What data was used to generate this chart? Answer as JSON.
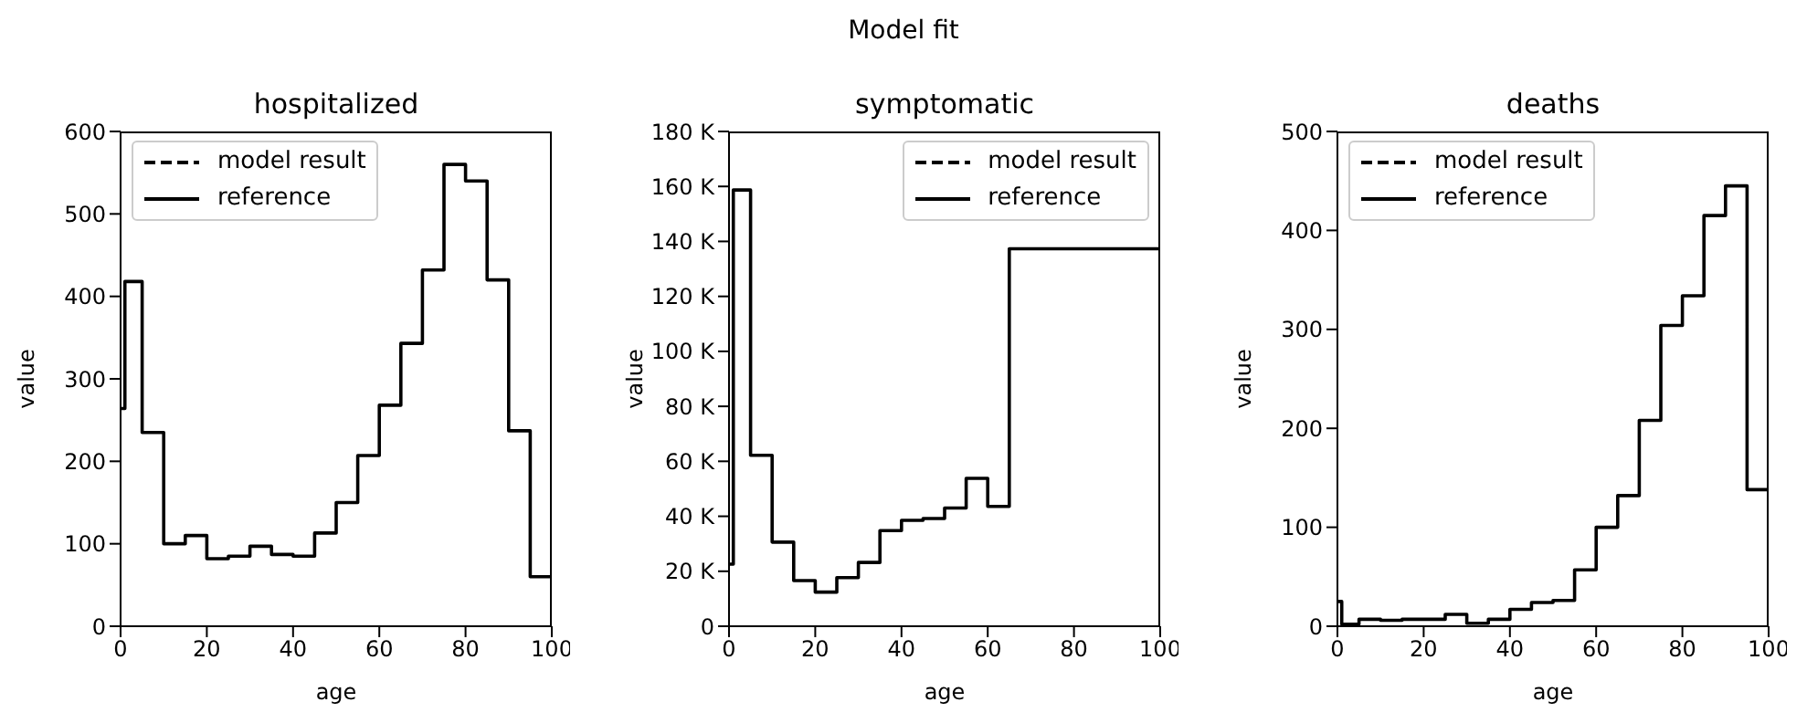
{
  "chart_data": [
    {
      "type": "step",
      "title": "hospitalized",
      "annotations": [
        "Model fit"
      ],
      "xlabel": "age",
      "ylabel": "value",
      "x": [
        0,
        1,
        5,
        10,
        15,
        20,
        25,
        30,
        35,
        40,
        45,
        50,
        55,
        60,
        65,
        70,
        75,
        80,
        85,
        90,
        95,
        100
      ],
      "series": [
        {
          "name": "model result",
          "color": "#000000",
          "line_style": "dashed",
          "values": [
            null,
            null,
            null,
            null,
            null,
            null,
            null,
            null,
            null,
            null,
            null,
            null,
            null,
            null,
            null,
            null,
            null,
            null,
            null,
            null,
            null,
            null
          ]
        },
        {
          "name": "reference",
          "color": "#000000",
          "line_style": "solid",
          "values": [
            264,
            418,
            235,
            100,
            110,
            82,
            85,
            97,
            87,
            85,
            113,
            150,
            207,
            268,
            343,
            432,
            560,
            540,
            420,
            237,
            60,
            60
          ]
        }
      ],
      "xlim": [
        0,
        100
      ],
      "xticks": [
        0,
        20,
        40,
        60,
        80,
        100
      ],
      "ylim": [
        0,
        600
      ],
      "yticks": [
        0,
        100,
        200,
        300,
        400,
        500,
        600
      ],
      "grid": false,
      "legend": "top left"
    },
    {
      "type": "step",
      "title": "symptomatic",
      "xlabel": "age",
      "ylabel": "value",
      "x": [
        0,
        1,
        5,
        10,
        15,
        20,
        25,
        30,
        35,
        40,
        45,
        50,
        55,
        60,
        65,
        100
      ],
      "series": [
        {
          "name": "model result",
          "color": "#000000",
          "line_style": "dashed",
          "values": [
            null,
            null,
            null,
            null,
            null,
            null,
            null,
            null,
            null,
            null,
            null,
            null,
            null,
            null,
            null,
            null
          ]
        },
        {
          "name": "reference",
          "color": "#000000",
          "line_style": "solid",
          "values": [
            22600,
            158700,
            62200,
            30600,
            16600,
            12400,
            17700,
            23200,
            34800,
            38500,
            39200,
            43000,
            53800,
            43600,
            137300,
            137300
          ]
        }
      ],
      "xlim": [
        0,
        100
      ],
      "xticks": [
        0,
        20,
        40,
        60,
        80,
        100
      ],
      "ylim": [
        0,
        180000
      ],
      "yticks": [
        0,
        {
          "value": 20000,
          "label": "20 K"
        },
        {
          "value": 40000,
          "label": "40 K"
        },
        {
          "value": 60000,
          "label": "60 K"
        },
        {
          "value": 80000,
          "label": "80 K"
        },
        {
          "value": 100000,
          "label": "100 K"
        },
        {
          "value": 120000,
          "label": "120 K"
        },
        {
          "value": 140000,
          "label": "140 K"
        },
        {
          "value": 160000,
          "label": "160 K"
        },
        {
          "value": 180000,
          "label": "180 K"
        }
      ],
      "grid": false,
      "legend": "top right"
    },
    {
      "type": "step",
      "title": "deaths",
      "xlabel": "age",
      "ylabel": "value",
      "x": [
        0,
        1,
        5,
        10,
        15,
        20,
        25,
        30,
        35,
        40,
        45,
        50,
        55,
        60,
        65,
        70,
        75,
        80,
        85,
        90,
        95,
        100
      ],
      "series": [
        {
          "name": "model result",
          "color": "#000000",
          "line_style": "dashed",
          "values": [
            null,
            null,
            null,
            null,
            null,
            null,
            null,
            null,
            null,
            null,
            null,
            null,
            null,
            null,
            null,
            null,
            null,
            null,
            null,
            null,
            null,
            null
          ]
        },
        {
          "name": "reference",
          "color": "#000000",
          "line_style": "solid",
          "values": [
            25,
            2,
            7,
            6,
            7,
            7,
            12,
            3,
            7,
            17,
            24,
            26,
            57,
            100,
            132,
            208,
            304,
            334,
            415,
            445,
            138,
            138
          ]
        }
      ],
      "xlim": [
        0,
        100
      ],
      "xticks": [
        0,
        20,
        40,
        60,
        80,
        100
      ],
      "ylim": [
        0,
        500
      ],
      "yticks": [
        0,
        100,
        200,
        300,
        400,
        500
      ],
      "grid": false,
      "legend": "top left"
    }
  ]
}
